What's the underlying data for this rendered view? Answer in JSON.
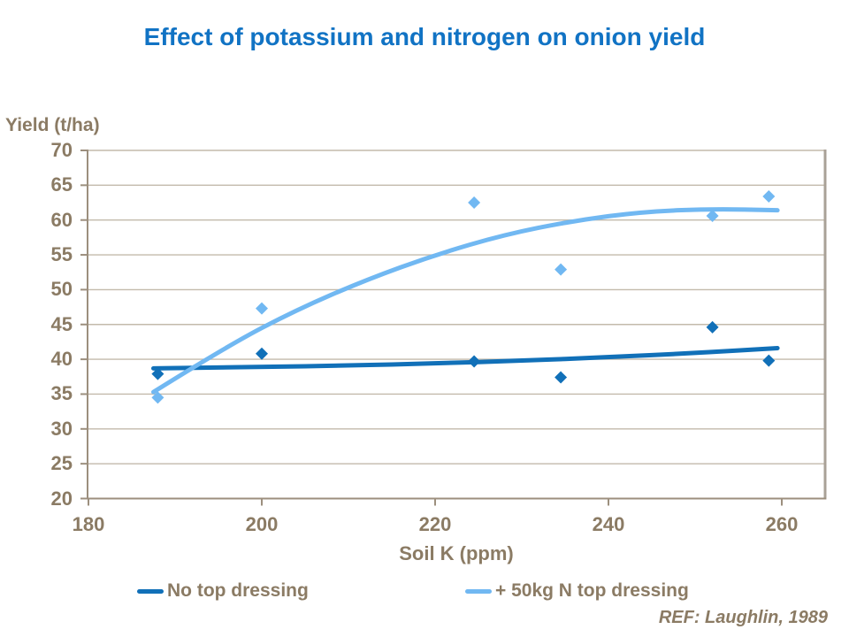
{
  "slide": {
    "title": "Effect of potassium and nitrogen on onion yield",
    "ref": "REF: Laughlin, 1989"
  },
  "colors": {
    "title_blue": "#1173C4",
    "text_brown": "#8B7B64",
    "gridline": "#C3BAAB",
    "axis_line": "#9C8F7E",
    "plot_border": "#A9A197"
  },
  "chart_data": {
    "type": "scatter",
    "title": "Effect of potassium and nitrogen on onion yield",
    "xlabel": "Soil K (ppm)",
    "ylabel": "Yield (t/ha)",
    "xlim": [
      180,
      265
    ],
    "ylim": [
      20,
      70
    ],
    "x_ticks": [
      180,
      200,
      220,
      240,
      260
    ],
    "y_ticks": [
      20,
      25,
      30,
      35,
      40,
      45,
      50,
      55,
      60,
      65,
      70
    ],
    "grid": "horizontal",
    "legend_position": "bottom",
    "annotation": "REF: Laughlin, 1989",
    "series": [
      {
        "name": "No top dressing",
        "color": "#1170B8",
        "marker": "diamond",
        "points": [
          [
            188,
            37.9
          ],
          [
            200,
            40.8
          ],
          [
            224.5,
            39.7
          ],
          [
            234.5,
            37.4
          ],
          [
            252,
            44.6
          ],
          [
            258.5,
            39.8
          ]
        ],
        "trend": [
          [
            187.5,
            38.7
          ],
          [
            200,
            38.9
          ],
          [
            210,
            39.1
          ],
          [
            220,
            39.4
          ],
          [
            230,
            39.8
          ],
          [
            240,
            40.3
          ],
          [
            250,
            40.9
          ],
          [
            259.5,
            41.6
          ]
        ]
      },
      {
        "name": "+ 50kg N top dressing",
        "color": "#71B8F2",
        "marker": "diamond",
        "points": [
          [
            188,
            34.5
          ],
          [
            200,
            47.3
          ],
          [
            224.5,
            62.5
          ],
          [
            234.5,
            52.9
          ],
          [
            252,
            60.6
          ],
          [
            258.5,
            63.4
          ]
        ],
        "trend": [
          [
            187.5,
            35.3
          ],
          [
            196,
            41.9
          ],
          [
            204,
            47.1
          ],
          [
            212,
            51.4
          ],
          [
            220,
            55.0
          ],
          [
            228,
            57.9
          ],
          [
            236,
            59.9
          ],
          [
            244,
            61.2
          ],
          [
            252,
            61.6
          ],
          [
            259.5,
            61.4
          ]
        ]
      }
    ]
  }
}
